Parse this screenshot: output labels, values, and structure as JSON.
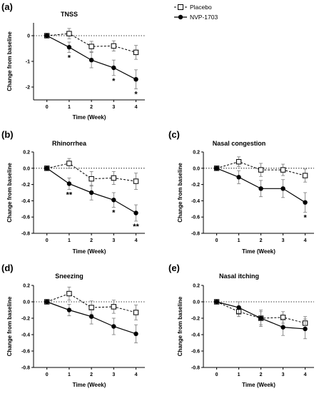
{
  "legend": {
    "placebo": "Placebo",
    "active": "NVP-1703"
  },
  "chart_data": [
    {
      "panel": "(a)",
      "type": "line",
      "title": "TNSS",
      "xlabel": "Time (Week)",
      "ylabel": "Change from baseline",
      "x": [
        0,
        1,
        2,
        3,
        4
      ],
      "ylim": [
        -2.5,
        0.5
      ],
      "yticks": [
        0,
        -1,
        -2
      ],
      "ytick_labels": [
        "0",
        "-1",
        "-2"
      ],
      "series": [
        {
          "name": "Placebo",
          "values": [
            0,
            0.08,
            -0.42,
            -0.4,
            -0.65
          ],
          "err": [
            0,
            0.2,
            0.2,
            0.2,
            0.27
          ]
        },
        {
          "name": "NVP-1703",
          "values": [
            0,
            -0.45,
            -0.95,
            -1.25,
            -1.7
          ],
          "err": [
            0,
            0.2,
            0.3,
            0.3,
            0.37
          ]
        }
      ],
      "annotations": [
        {
          "x": 1,
          "text": "*"
        },
        {
          "x": 3,
          "text": "*"
        },
        {
          "x": 4,
          "text": "*"
        }
      ]
    },
    {
      "panel": "(b)",
      "type": "line",
      "title": "Rhinorrhea",
      "xlabel": "Time (Week)",
      "ylabel": "Change from baseline",
      "x": [
        0,
        1,
        2,
        3,
        4
      ],
      "ylim": [
        -0.8,
        0.2
      ],
      "yticks": [
        0.2,
        0,
        -0.2,
        -0.4,
        -0.6,
        -0.8
      ],
      "ytick_labels": [
        "0.2",
        "0.0",
        "-0.2",
        "-0.4",
        "-0.6",
        "-0.8"
      ],
      "series": [
        {
          "name": "Placebo",
          "values": [
            0,
            0.06,
            -0.13,
            -0.12,
            -0.16
          ],
          "err": [
            0,
            0.06,
            0.09,
            0.08,
            0.1
          ]
        },
        {
          "name": "NVP-1703",
          "values": [
            0,
            -0.19,
            -0.3,
            -0.39,
            -0.55
          ],
          "err": [
            0,
            0.07,
            0.09,
            0.09,
            0.1
          ]
        }
      ],
      "annotations": [
        {
          "x": 1,
          "text": "**"
        },
        {
          "x": 3,
          "text": "*"
        },
        {
          "x": 4,
          "text": "**"
        }
      ]
    },
    {
      "panel": "(c)",
      "type": "line",
      "title": "Nasal congestion",
      "xlabel": "Time (Week)",
      "ylabel": "Change from baseline",
      "x": [
        0,
        1,
        2,
        3,
        4
      ],
      "ylim": [
        -0.8,
        0.2
      ],
      "yticks": [
        0.2,
        0,
        -0.2,
        -0.4,
        -0.6,
        -0.8
      ],
      "ytick_labels": [
        "0.2",
        "0.0",
        "-0.2",
        "-0.4",
        "-0.6",
        "-0.8"
      ],
      "series": [
        {
          "name": "Placebo",
          "values": [
            0,
            0.08,
            -0.02,
            -0.02,
            -0.09
          ],
          "err": [
            0,
            0.06,
            0.08,
            0.07,
            0.08
          ]
        },
        {
          "name": "NVP-1703",
          "values": [
            0,
            -0.11,
            -0.25,
            -0.25,
            -0.42
          ],
          "err": [
            0,
            0.08,
            0.1,
            0.11,
            0.12
          ]
        }
      ],
      "annotations": [
        {
          "x": 4,
          "text": "*"
        }
      ]
    },
    {
      "panel": "(d)",
      "type": "line",
      "title": "Sneezing",
      "xlabel": "Time (Week)",
      "ylabel": "Change from baseline",
      "x": [
        0,
        1,
        2,
        3,
        4
      ],
      "ylim": [
        -0.8,
        0.2
      ],
      "yticks": [
        0.2,
        0,
        -0.2,
        -0.4,
        -0.6,
        -0.8
      ],
      "ytick_labels": [
        "0.2",
        "0.0",
        "-0.2",
        "-0.4",
        "-0.6",
        "-0.8"
      ],
      "series": [
        {
          "name": "Placebo",
          "values": [
            0,
            0.1,
            -0.07,
            -0.06,
            -0.13
          ],
          "err": [
            0,
            0.08,
            0.08,
            0.08,
            0.09
          ]
        },
        {
          "name": "NVP-1703",
          "values": [
            0,
            -0.1,
            -0.18,
            -0.3,
            -0.39
          ],
          "err": [
            0,
            0.07,
            0.09,
            0.1,
            0.11
          ]
        }
      ],
      "annotations": []
    },
    {
      "panel": "(e)",
      "type": "line",
      "title": "Nasal itching",
      "xlabel": "Time (Week)",
      "ylabel": "Change from baseline",
      "x": [
        0,
        1,
        2,
        3,
        4
      ],
      "ylim": [
        -0.8,
        0.2
      ],
      "yticks": [
        0.2,
        0,
        -0.2,
        -0.4,
        -0.6,
        -0.8
      ],
      "ytick_labels": [
        "0.2",
        "0.0",
        "-0.2",
        "-0.4",
        "-0.6",
        "-0.8"
      ],
      "series": [
        {
          "name": "Placebo",
          "values": [
            0,
            -0.12,
            -0.2,
            -0.19,
            -0.26
          ],
          "err": [
            0,
            0.06,
            0.08,
            0.07,
            0.08
          ]
        },
        {
          "name": "NVP-1703",
          "values": [
            0,
            -0.07,
            -0.2,
            -0.31,
            -0.33
          ],
          "err": [
            0,
            0.07,
            0.1,
            0.1,
            0.12
          ]
        }
      ],
      "annotations": []
    }
  ]
}
